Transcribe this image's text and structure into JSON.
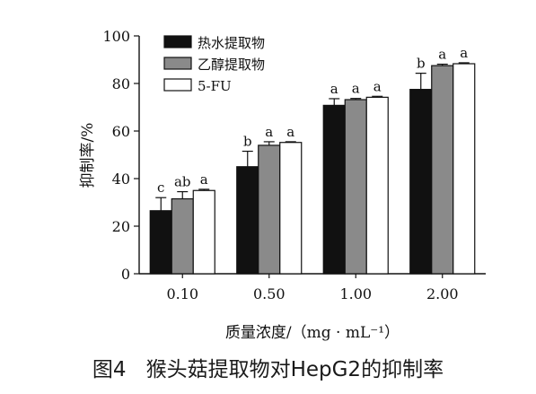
{
  "chart_data": {
    "type": "bar",
    "title": "",
    "xlabel": "质量浓度/（mg · mL⁻¹）",
    "ylabel": "抑制率/%",
    "ylim": [
      0,
      100
    ],
    "yticks": [
      0,
      20,
      40,
      60,
      80,
      100
    ],
    "grid": false,
    "legend_position": "top-left",
    "categories": [
      "0.10",
      "0.50",
      "1.00",
      "2.00"
    ],
    "series": [
      {
        "name": "热水提取物",
        "color": "#111111",
        "values": [
          26.5,
          45.0,
          70.8,
          77.5
        ],
        "errors": [
          5.5,
          6.5,
          2.8,
          6.8
        ],
        "labels": [
          "c",
          "b",
          "a",
          "b"
        ]
      },
      {
        "name": "乙醇提取物",
        "color": "#8a8a8a",
        "values": [
          31.5,
          54.0,
          73.2,
          87.5
        ],
        "errors": [
          3.0,
          1.5,
          0.5,
          0.6
        ],
        "labels": [
          "ab",
          "a",
          "a",
          "a"
        ]
      },
      {
        "name": "5-FU",
        "color": "#ffffff",
        "values": [
          35.0,
          55.2,
          74.2,
          88.3
        ],
        "errors": [
          0.5,
          0.3,
          0.4,
          0.4
        ],
        "labels": [
          "a",
          "a",
          "a",
          "a"
        ]
      }
    ]
  },
  "caption": {
    "number": "图4",
    "text": "猴头菇提取物对HepG2的抑制率"
  }
}
